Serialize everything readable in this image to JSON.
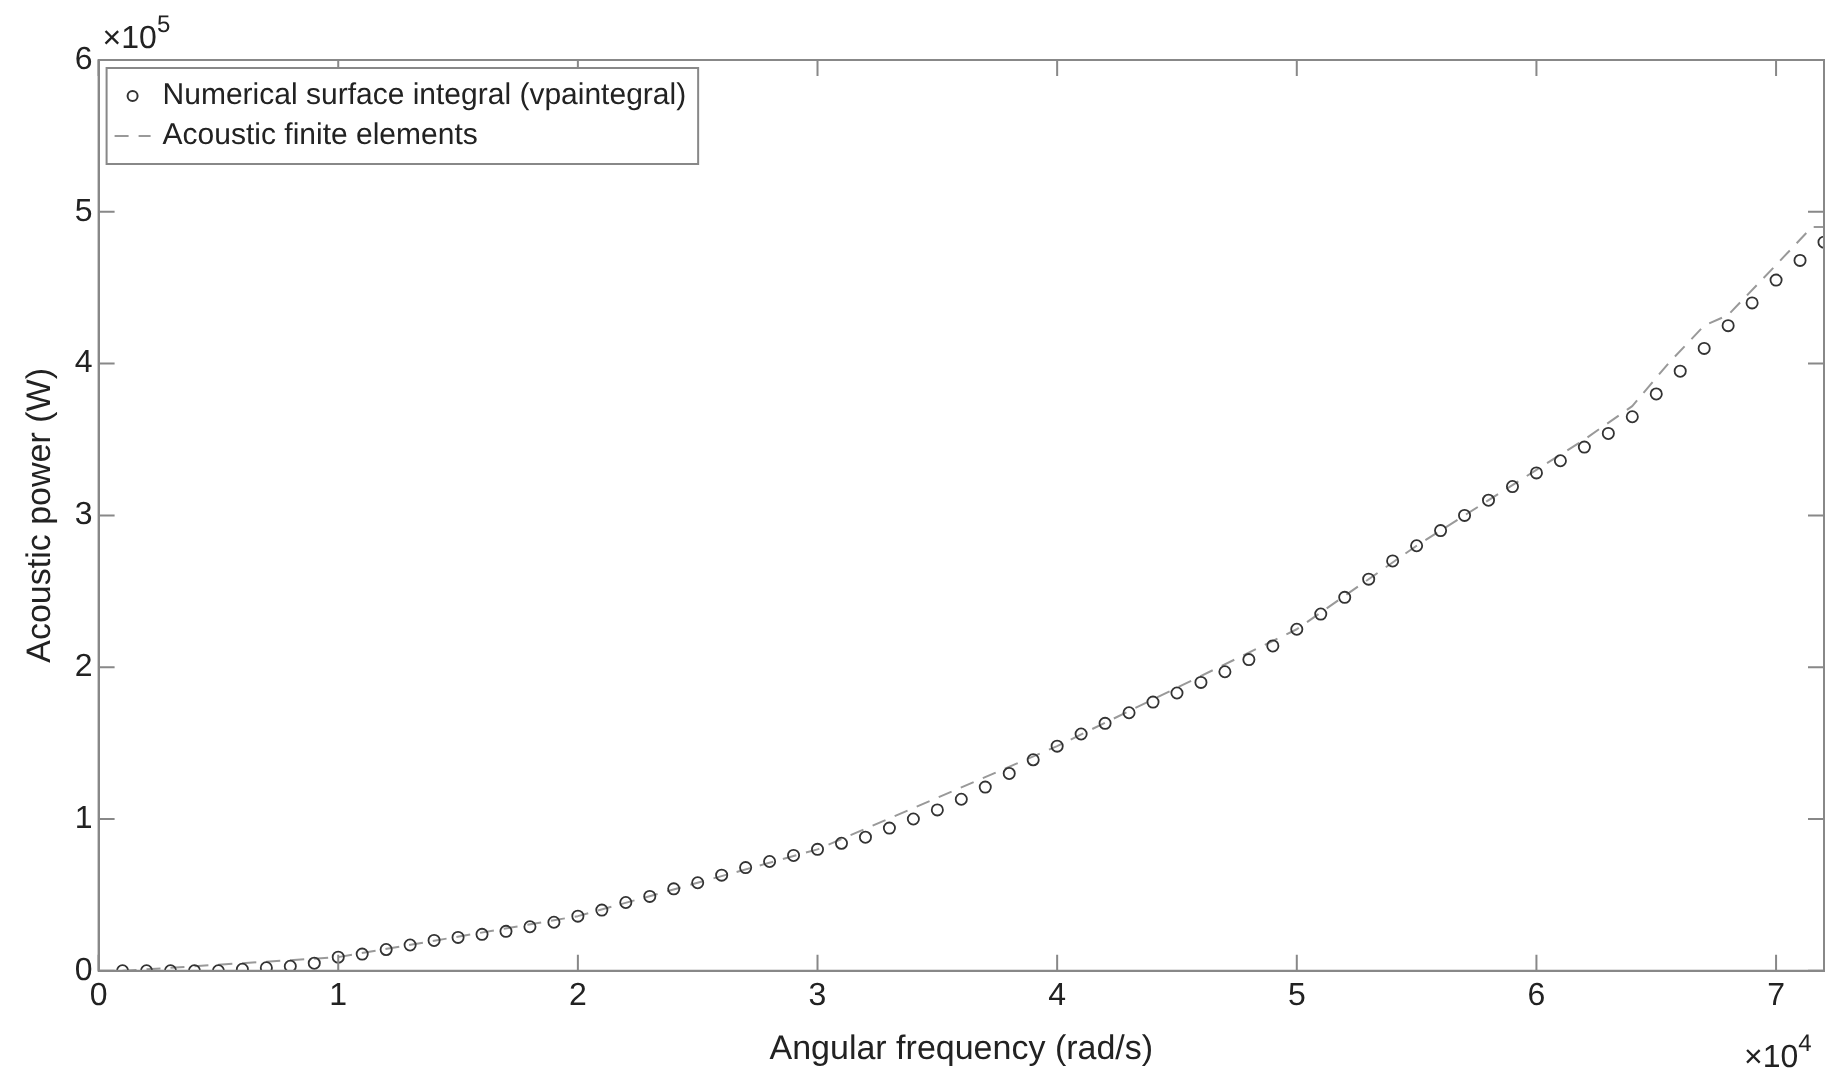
{
  "chart_data": {
    "type": "scatter",
    "xlabel": "Angular frequency (rad/s)",
    "ylabel": "Acoustic power (W)",
    "xlim": [
      0,
      7.2
    ],
    "ylim": [
      0,
      6
    ],
    "xticks": [
      0,
      1,
      2,
      3,
      4,
      5,
      6,
      7
    ],
    "yticks": [
      0,
      1,
      2,
      3,
      4,
      5,
      6
    ],
    "annotations": [
      "×10$^{5}$",
      "×10$^{4}$"
    ],
    "legend": "top left",
    "series": [
      {
        "name": "Numerical surface integral (vpaintegral)",
        "type": "scatter",
        "marker": "circle",
        "color": "#333333",
        "x": [
          0.1,
          0.2,
          0.3,
          0.4,
          0.5,
          0.6,
          0.7,
          0.8,
          0.9,
          1.0,
          1.1,
          1.2,
          1.3,
          1.4,
          1.5,
          1.6,
          1.7,
          1.8,
          1.9,
          2.0,
          2.1,
          2.2,
          2.3,
          2.4,
          2.5,
          2.6,
          2.7,
          2.8,
          2.9,
          3.0,
          3.1,
          3.2,
          3.3,
          3.4,
          3.5,
          3.6,
          3.7,
          3.8,
          3.9,
          4.0,
          4.1,
          4.2,
          4.3,
          4.4,
          4.5,
          4.6,
          4.7,
          4.8,
          4.9,
          5.0,
          5.1,
          5.2,
          5.3,
          5.4,
          5.5,
          5.6,
          5.7,
          5.8,
          5.9,
          6.0,
          6.1,
          6.2,
          6.3,
          6.4,
          6.5,
          6.6,
          6.7,
          6.8,
          6.9,
          7.0,
          7.1,
          7.2
        ],
        "values": [
          0,
          0,
          0,
          0,
          0,
          0.01,
          0.02,
          0.03,
          0.05,
          0.09,
          0.11,
          0.14,
          0.17,
          0.2,
          0.22,
          0.24,
          0.26,
          0.29,
          0.32,
          0.36,
          0.4,
          0.45,
          0.49,
          0.54,
          0.58,
          0.63,
          0.68,
          0.72,
          0.76,
          0.8,
          0.84,
          0.88,
          0.94,
          1.0,
          1.06,
          1.13,
          1.21,
          1.3,
          1.39,
          1.48,
          1.56,
          1.63,
          1.7,
          1.77,
          1.83,
          1.9,
          1.97,
          2.05,
          2.14,
          2.25,
          2.35,
          2.46,
          2.58,
          2.7,
          2.8,
          2.9,
          3.0,
          3.1,
          3.19,
          3.28,
          3.36,
          3.45,
          3.54,
          3.65,
          3.8,
          3.95,
          4.1,
          4.25,
          4.4,
          4.55,
          4.68,
          4.8
        ]
      },
      {
        "name": "Acoustic finite elements",
        "type": "line",
        "line_style": "dashed",
        "marker": "none",
        "color": "#999999",
        "x": [
          0.1,
          1.0,
          2.0,
          3.0,
          4.0,
          5.0,
          5.5,
          6.0,
          6.2,
          6.4,
          6.55,
          6.7,
          6.8,
          7.0,
          7.15,
          7.2
        ],
        "values": [
          0,
          0.09,
          0.36,
          0.8,
          1.48,
          2.25,
          2.8,
          3.3,
          3.5,
          3.72,
          4.0,
          4.25,
          4.32,
          4.65,
          4.9,
          4.9
        ]
      }
    ]
  }
}
